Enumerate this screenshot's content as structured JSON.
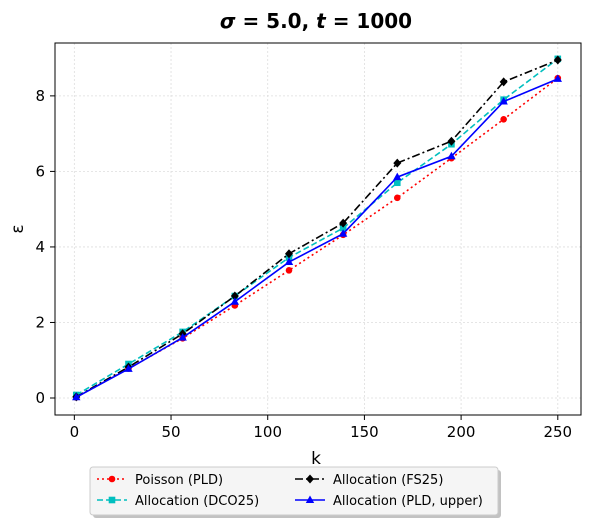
{
  "chart_data": {
    "type": "line",
    "title_parts": [
      {
        "text": "σ",
        "italic": true
      },
      {
        "text": " = 5.0, ",
        "italic": false
      },
      {
        "text": "t",
        "italic": true
      },
      {
        "text": " = 1000",
        "italic": false
      }
    ],
    "xlabel": "k",
    "ylabel": "ε",
    "xlim": [
      -10,
      262
    ],
    "ylim": [
      -0.45,
      9.4
    ],
    "xticks": [
      0,
      50,
      100,
      150,
      200,
      250
    ],
    "yticks": [
      0,
      2,
      4,
      6,
      8
    ],
    "grid": true,
    "legend_placement": "below the plot, two columns",
    "x": [
      1,
      28,
      56,
      83,
      111,
      139,
      167,
      195,
      222,
      250
    ],
    "series": [
      {
        "name": "Poisson (PLD)",
        "color": "#ff0000",
        "line_style": "dotted",
        "marker": "circle",
        "values": [
          0.02,
          0.78,
          1.58,
          2.45,
          3.38,
          4.32,
          5.3,
          6.35,
          7.38,
          8.47
        ]
      },
      {
        "name": "Allocation (DCO25)",
        "color": "#00bfbf",
        "line_style": "dashed",
        "marker": "square",
        "values": [
          0.08,
          0.9,
          1.75,
          2.7,
          3.72,
          4.5,
          5.7,
          6.72,
          7.9,
          8.98
        ]
      },
      {
        "name": "Allocation (FS25)",
        "color": "#000000",
        "line_style": "dashdot",
        "marker": "diamond",
        "values": [
          0.03,
          0.82,
          1.7,
          2.7,
          3.82,
          4.63,
          6.22,
          6.8,
          8.37,
          8.95
        ]
      },
      {
        "name": "Allocation (PLD, upper)",
        "color": "#0000ff",
        "line_style": "solid",
        "marker": "triangle",
        "values": [
          0.02,
          0.77,
          1.6,
          2.55,
          3.6,
          4.35,
          5.85,
          6.4,
          7.85,
          8.45
        ]
      }
    ]
  }
}
